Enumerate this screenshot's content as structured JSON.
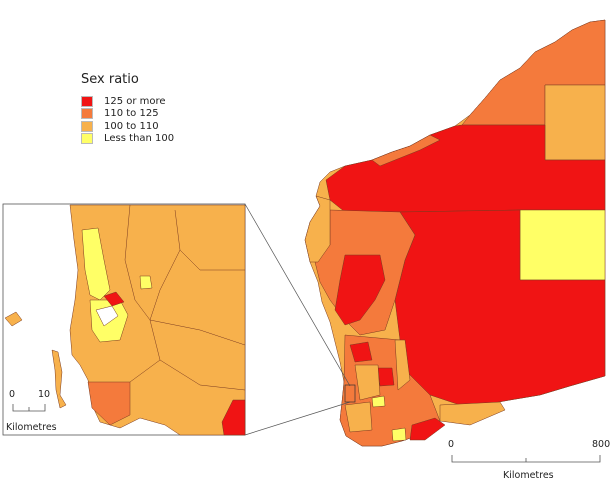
{
  "legend": {
    "title": "Sex ratio",
    "items": [
      {
        "label": "125 or more",
        "color": "#f01414"
      },
      {
        "label": "110 to 125",
        "color": "#f47a3c"
      },
      {
        "label": "100 to 110",
        "color": "#f7b14c"
      },
      {
        "label": "Less than 100",
        "color": "#ffff66"
      }
    ]
  },
  "main_scale": {
    "start": "0",
    "end": "800",
    "unit": "Kilometres"
  },
  "inset_scale": {
    "start": "0",
    "end": "10",
    "unit": "Kilometres"
  }
}
